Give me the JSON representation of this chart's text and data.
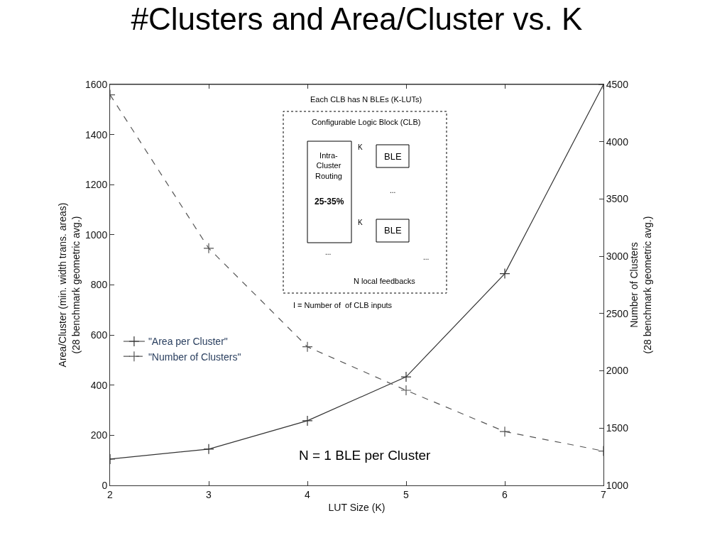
{
  "chart_data": {
    "type": "line",
    "title": "#Clusters and Area/Cluster vs. K",
    "xlabel": "LUT Size (K)",
    "ylabel": "Area/Cluster (min. width trans. areas)\n(28 benchmark geometric avg.)",
    "y2label": "Number of Clusters\n(28 benchmark geometric avg.)",
    "x": [
      2,
      3,
      4,
      5,
      6,
      7
    ],
    "series": [
      {
        "name": "\"Area per Cluster\"",
        "color": "#333333",
        "values": [
          105,
          145,
          258,
          433,
          845,
          1600
        ],
        "marker": "cross",
        "line_style": "solid"
      },
      {
        "name": "\"Number of Clusters\"",
        "color": "#555555",
        "values": [
          4410,
          3070,
          2210,
          1830,
          1470,
          1300
        ],
        "marker": "cross",
        "line_style": "dashed",
        "axis": "y2"
      }
    ],
    "xlim": [
      2,
      7
    ],
    "xticks": [
      2,
      3,
      4,
      5,
      6,
      7
    ],
    "ylim": [
      0,
      1600
    ],
    "yticks": [
      0,
      200,
      400,
      600,
      800,
      1000,
      1200,
      1400,
      1600
    ],
    "y2lim": [
      1000,
      4500
    ],
    "y2ticks": [
      1000,
      1500,
      2000,
      2500,
      3000,
      3500,
      4000,
      4500
    ],
    "legend": "left",
    "annotations": [
      "N = 1 BLE per Cluster",
      "Each CLB has N BLEs (K-LUTs)",
      "Configurable Logic Block (CLB)",
      "Intra-\nCluster\nRouting",
      "25-35%",
      "K",
      "BLE",
      "...",
      "K",
      "BLE",
      "...",
      "...",
      "N local feedbacks",
      "I = Number of  of CLB inputs"
    ]
  }
}
